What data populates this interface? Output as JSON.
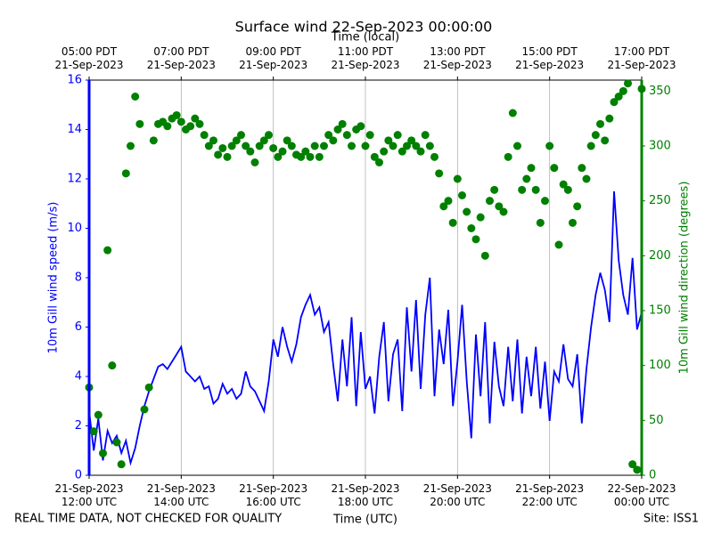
{
  "chart_data": {
    "type": "line",
    "title": "Surface wind 22-Sep-2023 00:00:00",
    "x2label": "Time (local)",
    "xlabel": "Time (UTC)",
    "ylabel": "10m Gill wind speed (m/s)",
    "y2label": "10m Gill wind direction (degrees)",
    "note": "REAL TIME DATA, NOT CHECKED FOR QUALITY",
    "site": "Site: ISS1",
    "grid": true,
    "xlim": [
      "2023-09-21 12:00",
      "2023-09-22 00:00"
    ],
    "xticks": [
      {
        "value": "2023-09-21 12:00",
        "label": "21-Sep-2023\n12:00 UTC"
      },
      {
        "value": "2023-09-21 14:00",
        "label": "21-Sep-2023\n14:00 UTC"
      },
      {
        "value": "2023-09-21 16:00",
        "label": "21-Sep-2023\n16:00 UTC"
      },
      {
        "value": "2023-09-21 18:00",
        "label": "21-Sep-2023\n18:00 UTC"
      },
      {
        "value": "2023-09-21 20:00",
        "label": "21-Sep-2023\n20:00 UTC"
      },
      {
        "value": "2023-09-21 22:00",
        "label": "21-Sep-2023\n22:00 UTC"
      },
      {
        "value": "2023-09-22 00:00",
        "label": "22-Sep-2023\n00:00 UTC"
      }
    ],
    "x2ticks": [
      {
        "value": "2023-09-21 12:00",
        "label": "05:00 PDT\n21-Sep-2023"
      },
      {
        "value": "2023-09-21 14:00",
        "label": "07:00 PDT\n21-Sep-2023"
      },
      {
        "value": "2023-09-21 16:00",
        "label": "09:00 PDT\n21-Sep-2023"
      },
      {
        "value": "2023-09-21 18:00",
        "label": "11:00 PDT\n21-Sep-2023"
      },
      {
        "value": "2023-09-21 20:00",
        "label": "13:00 PDT\n21-Sep-2023"
      },
      {
        "value": "2023-09-21 22:00",
        "label": "15:00 PDT\n21-Sep-2023"
      },
      {
        "value": "2023-09-22 00:00",
        "label": "17:00 PDT\n21-Sep-2023"
      }
    ],
    "ylim": [
      0,
      16
    ],
    "yticks": [
      0,
      2,
      4,
      6,
      8,
      10,
      12,
      14,
      16
    ],
    "y2lim": [
      0,
      360
    ],
    "y2ticks": [
      0,
      50,
      100,
      150,
      200,
      250,
      300,
      350
    ],
    "ycolor": "#0000ff",
    "y2color": "#008000",
    "x": [
      "2023-09-21 12:00",
      "2023-09-21 12:06",
      "2023-09-21 12:12",
      "2023-09-21 12:18",
      "2023-09-21 12:24",
      "2023-09-21 12:30",
      "2023-09-21 12:36",
      "2023-09-21 12:42",
      "2023-09-21 12:48",
      "2023-09-21 12:54",
      "2023-09-21 13:00",
      "2023-09-21 13:06",
      "2023-09-21 13:12",
      "2023-09-21 13:18",
      "2023-09-21 13:24",
      "2023-09-21 13:30",
      "2023-09-21 13:36",
      "2023-09-21 13:42",
      "2023-09-21 13:48",
      "2023-09-21 13:54",
      "2023-09-21 14:00",
      "2023-09-21 14:06",
      "2023-09-21 14:12",
      "2023-09-21 14:18",
      "2023-09-21 14:24",
      "2023-09-21 14:30",
      "2023-09-21 14:36",
      "2023-09-21 14:42",
      "2023-09-21 14:48",
      "2023-09-21 14:54",
      "2023-09-21 15:00",
      "2023-09-21 15:06",
      "2023-09-21 15:12",
      "2023-09-21 15:18",
      "2023-09-21 15:24",
      "2023-09-21 15:30",
      "2023-09-21 15:36",
      "2023-09-21 15:42",
      "2023-09-21 15:48",
      "2023-09-21 15:54",
      "2023-09-21 16:00",
      "2023-09-21 16:06",
      "2023-09-21 16:12",
      "2023-09-21 16:18",
      "2023-09-21 16:24",
      "2023-09-21 16:30",
      "2023-09-21 16:36",
      "2023-09-21 16:42",
      "2023-09-21 16:48",
      "2023-09-21 16:54",
      "2023-09-21 17:00",
      "2023-09-21 17:06",
      "2023-09-21 17:12",
      "2023-09-21 17:18",
      "2023-09-21 17:24",
      "2023-09-21 17:30",
      "2023-09-21 17:36",
      "2023-09-21 17:42",
      "2023-09-21 17:48",
      "2023-09-21 17:54",
      "2023-09-21 18:00",
      "2023-09-21 18:06",
      "2023-09-21 18:12",
      "2023-09-21 18:18",
      "2023-09-21 18:24",
      "2023-09-21 18:30",
      "2023-09-21 18:36",
      "2023-09-21 18:42",
      "2023-09-21 18:48",
      "2023-09-21 18:54",
      "2023-09-21 19:00",
      "2023-09-21 19:06",
      "2023-09-21 19:12",
      "2023-09-21 19:18",
      "2023-09-21 19:24",
      "2023-09-21 19:30",
      "2023-09-21 19:36",
      "2023-09-21 19:42",
      "2023-09-21 19:48",
      "2023-09-21 19:54",
      "2023-09-21 20:00",
      "2023-09-21 20:06",
      "2023-09-21 20:12",
      "2023-09-21 20:18",
      "2023-09-21 20:24",
      "2023-09-21 20:30",
      "2023-09-21 20:36",
      "2023-09-21 20:42",
      "2023-09-21 20:48",
      "2023-09-21 20:54",
      "2023-09-21 21:00",
      "2023-09-21 21:06",
      "2023-09-21 21:12",
      "2023-09-21 21:18",
      "2023-09-21 21:24",
      "2023-09-21 21:30",
      "2023-09-21 21:36",
      "2023-09-21 21:42",
      "2023-09-21 21:48",
      "2023-09-21 21:54",
      "2023-09-21 22:00",
      "2023-09-21 22:06",
      "2023-09-21 22:12",
      "2023-09-21 22:18",
      "2023-09-21 22:24",
      "2023-09-21 22:30",
      "2023-09-21 22:36",
      "2023-09-21 22:42",
      "2023-09-21 22:48",
      "2023-09-21 22:54",
      "2023-09-21 23:00",
      "2023-09-21 23:06",
      "2023-09-21 23:12",
      "2023-09-21 23:18",
      "2023-09-21 23:24",
      "2023-09-21 23:30",
      "2023-09-21 23:36",
      "2023-09-21 23:42",
      "2023-09-21 23:48",
      "2023-09-21 23:54",
      "2023-09-22 00:00"
    ],
    "series": [
      {
        "type": "line",
        "color": "#0000ff",
        "axis": "y",
        "values": [
          2.6,
          1.0,
          2.3,
          0.6,
          1.8,
          1.3,
          1.6,
          0.9,
          1.4,
          0.5,
          1.1,
          2.0,
          2.8,
          3.4,
          3.9,
          4.4,
          4.5,
          4.3,
          4.6,
          4.9,
          5.2,
          4.2,
          4.0,
          3.8,
          4.0,
          3.5,
          3.6,
          2.9,
          3.1,
          3.7,
          3.3,
          3.5,
          3.1,
          3.3,
          4.2,
          3.6,
          3.4,
          3.0,
          2.6,
          3.8,
          5.5,
          4.8,
          6.0,
          5.2,
          4.6,
          5.3,
          6.4,
          6.9,
          7.3,
          6.5,
          6.8,
          5.8,
          6.2,
          4.5,
          3.0,
          5.5,
          3.6,
          6.4,
          2.8,
          5.8,
          3.5,
          4.0,
          2.5,
          4.8,
          6.2,
          3.0,
          4.9,
          5.5,
          2.6,
          6.8,
          4.2,
          7.1,
          3.5,
          6.5,
          8.0,
          3.2,
          5.9,
          4.5,
          6.7,
          2.8,
          4.6,
          6.9,
          3.8,
          1.5,
          5.7,
          3.2,
          6.2,
          2.1,
          5.4,
          3.6,
          2.8,
          5.2,
          3.0,
          5.5,
          2.5,
          4.8,
          3.2,
          5.2,
          2.7,
          4.6,
          2.2,
          4.2,
          3.8,
          5.3,
          3.9,
          3.6,
          4.9,
          2.1,
          4.3,
          6.0,
          7.3,
          8.2,
          7.5,
          6.2,
          11.5,
          8.7,
          7.3,
          6.5,
          8.8,
          5.9,
          6.6
        ]
      },
      {
        "type": "scatter",
        "color": "#008000",
        "axis": "y2",
        "values": [
          80,
          40,
          55,
          20,
          205,
          100,
          30,
          10,
          275,
          300,
          345,
          320,
          60,
          80,
          305,
          320,
          322,
          318,
          325,
          328,
          322,
          315,
          318,
          325,
          320,
          310,
          300,
          305,
          292,
          298,
          290,
          300,
          305,
          310,
          300,
          295,
          285,
          300,
          305,
          310,
          298,
          290,
          295,
          305,
          300,
          292,
          290,
          295,
          290,
          300,
          290,
          300,
          310,
          305,
          315,
          320,
          310,
          300,
          315,
          318,
          300,
          310,
          290,
          285,
          295,
          305,
          300,
          310,
          295,
          300,
          305,
          300,
          295,
          310,
          300,
          290,
          275,
          245,
          250,
          230,
          270,
          255,
          240,
          225,
          215,
          235,
          200,
          250,
          260,
          245,
          240,
          290,
          330,
          300,
          260,
          270,
          280,
          260,
          230,
          250,
          300,
          280,
          210,
          265,
          260,
          230,
          245,
          280,
          270,
          300,
          310,
          320,
          305,
          325,
          340,
          345,
          350,
          357,
          10,
          5,
          352
        ]
      }
    ]
  }
}
